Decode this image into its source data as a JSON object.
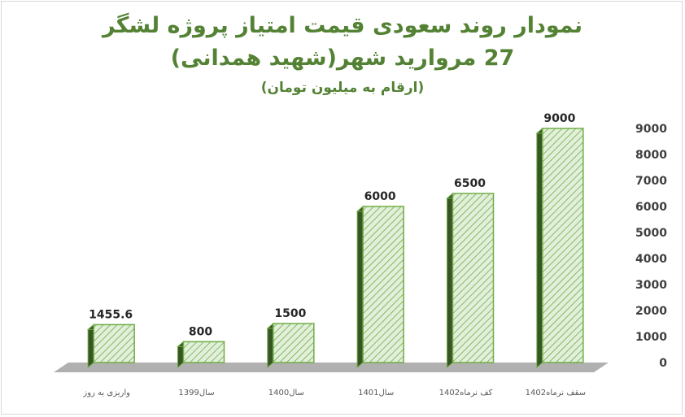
{
  "chart_data": {
    "type": "bar",
    "title_lines": [
      "نمودار روند سعودی قیمت امتیاز پروژه لشگر",
      "27 مروارید شهر(شهید همدانی)",
      "(ارقام به میلیون تومان)"
    ],
    "categories": [
      "واریزی به روز",
      "سال1399",
      "سال1400",
      "سال1401",
      "کف نرماه1402",
      "سقف نرماه1402"
    ],
    "values": [
      1455.6,
      800,
      1500,
      6000,
      6500,
      9000
    ],
    "value_labels": [
      "1455.6",
      "800",
      "1500",
      "6000",
      "6500",
      "9000"
    ],
    "y_ticks": [
      "0",
      "1000",
      "2000",
      "3000",
      "4000",
      "5000",
      "6000",
      "7000",
      "8000",
      "9000"
    ],
    "ylim": [
      0,
      9000
    ],
    "y_axis_side": "right",
    "grid": false,
    "bar_style": "3d-hatched",
    "colors": {
      "title": "#548235",
      "bar_outline": "#70ad47",
      "bar_fill": "#e2efda",
      "hatch": "#70ad47",
      "bar_side": "#375623",
      "floor": "#b0b0b0",
      "text": "#262626"
    }
  }
}
